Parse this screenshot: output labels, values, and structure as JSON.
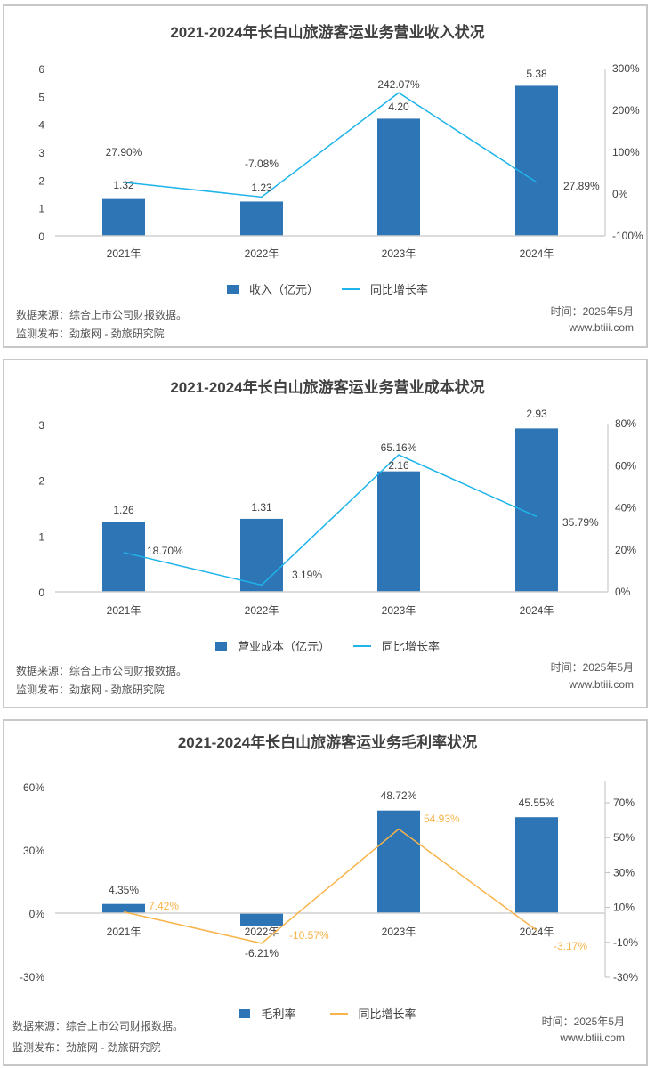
{
  "colors": {
    "bar": "#2e75b6",
    "line_blue": "#1fb4ea",
    "line_orange": "#f8b44a",
    "axis": "#d0d0d0"
  },
  "footer": {
    "source": "数据来源：综合上市公司财报数据。",
    "publisher": "监测发布：劲旅网 - 劲旅研究院",
    "time": "时间：2025年5月",
    "site": "www.btiii.com"
  },
  "chart_data": [
    {
      "type": "bar+line",
      "title": "2021-2024年长白山旅游客运业务营业收入状况",
      "categories": [
        "2021年",
        "2022年",
        "2023年",
        "2024年"
      ],
      "series": [
        {
          "name": "收入（亿元）",
          "type": "bar",
          "axis": "left",
          "values": [
            1.32,
            1.23,
            4.2,
            5.38
          ],
          "labels": [
            "1.32",
            "1.23",
            "4.20",
            "5.38"
          ]
        },
        {
          "name": "同比增长率",
          "type": "line",
          "axis": "right",
          "values": [
            27.9,
            -7.08,
            242.07,
            27.89
          ],
          "labels": [
            "27.90%",
            "-7.08%",
            "242.07%",
            "27.89%"
          ]
        }
      ],
      "left_ticks": [
        "0",
        "1",
        "2",
        "3",
        "4",
        "5",
        "6"
      ],
      "ylim": [
        0,
        6
      ],
      "right_ticks": [
        "-100%",
        "0%",
        "100%",
        "200%",
        "300%"
      ],
      "y2lim": [
        -100,
        300
      ]
    },
    {
      "type": "bar+line",
      "title": "2021-2024年长白山旅游客运业务营业成本状况",
      "categories": [
        "2021年",
        "2022年",
        "2023年",
        "2024年"
      ],
      "series": [
        {
          "name": "营业成本（亿元）",
          "type": "bar",
          "axis": "left",
          "values": [
            1.26,
            1.31,
            2.16,
            2.93
          ],
          "labels": [
            "1.26",
            "1.31",
            "2.16",
            "2.93"
          ]
        },
        {
          "name": "同比增长率",
          "type": "line",
          "axis": "right",
          "values": [
            18.7,
            3.19,
            65.16,
            35.79
          ],
          "labels": [
            "18.70%",
            "3.19%",
            "65.16%",
            "35.79%"
          ]
        }
      ],
      "left_ticks": [
        "0",
        "1",
        "2",
        "3"
      ],
      "ylim": [
        0,
        3
      ],
      "right_ticks": [
        "0%",
        "20%",
        "40%",
        "60%",
        "80%"
      ],
      "y2lim": [
        0,
        80
      ]
    },
    {
      "type": "bar+line",
      "title": "2021-2024年长白山旅游客运业务毛利率状况",
      "categories": [
        "2021年",
        "2022年",
        "2023年",
        "2024年"
      ],
      "series": [
        {
          "name": "毛利率",
          "type": "bar",
          "axis": "left",
          "values": [
            4.35,
            -6.21,
            48.72,
            45.55
          ],
          "labels": [
            "4.35%",
            "-6.21%",
            "48.72%",
            "45.55%"
          ]
        },
        {
          "name": "同比增长率",
          "type": "line",
          "axis": "right",
          "values": [
            7.42,
            -10.57,
            54.93,
            -3.17
          ],
          "labels": [
            "7.42%",
            "-10.57%",
            "54.93%",
            "-3.17%"
          ]
        }
      ],
      "left_ticks": [
        "-30%",
        "0%",
        "30%",
        "60%"
      ],
      "ylim": [
        -30,
        60
      ],
      "right_ticks": [
        "-30%",
        "-10%",
        "10%",
        "30%",
        "50%",
        "70%"
      ],
      "y2lim": [
        -30,
        70
      ]
    }
  ]
}
